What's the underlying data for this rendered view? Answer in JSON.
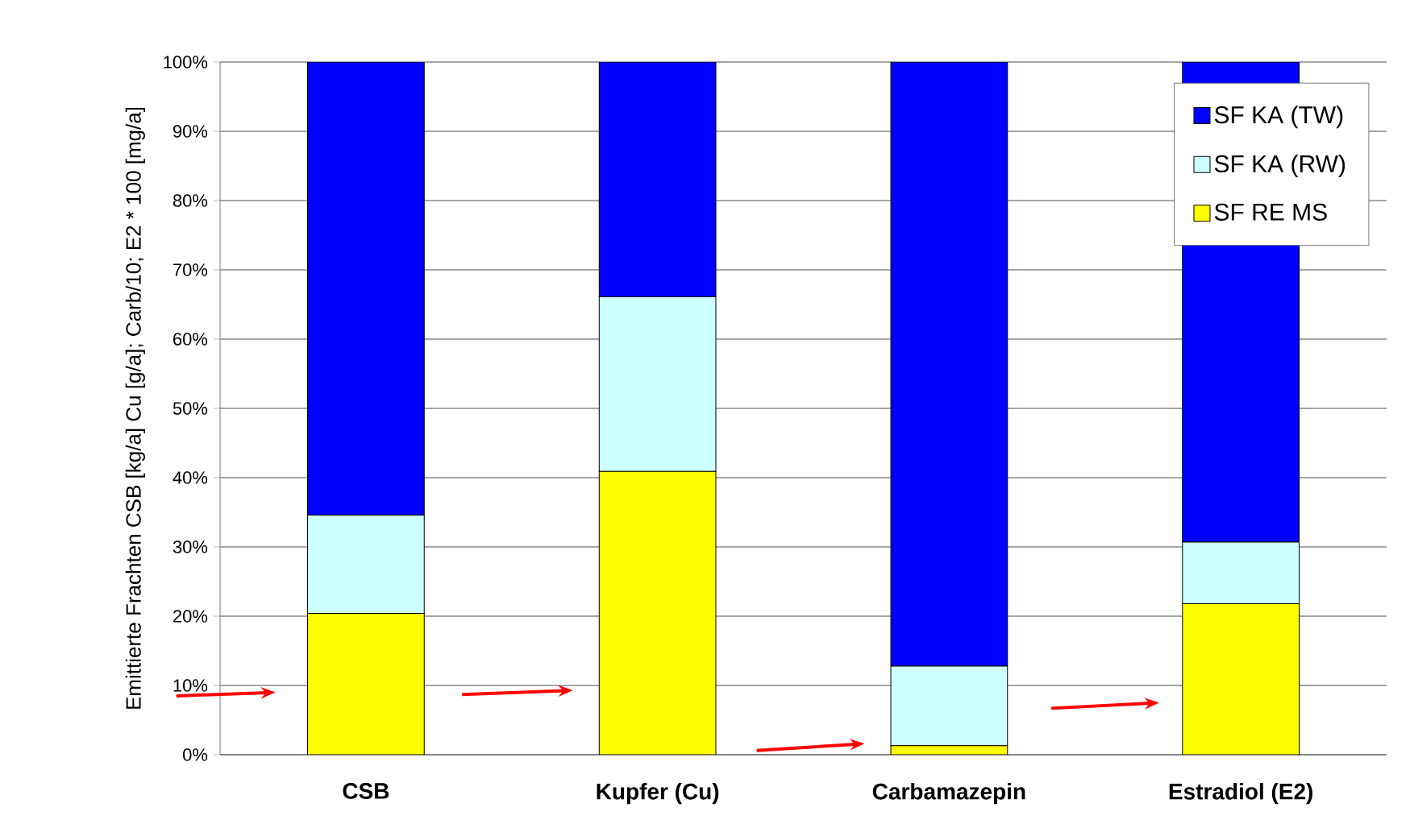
{
  "chart_data": {
    "type": "bar",
    "stacked": true,
    "ylabel": "Emittierte Frachten CSB [kg/a] Cu [g/a]; Carb/10; E2 * 100 [mg/a]",
    "categories": [
      "CSB",
      "Kupfer (Cu)",
      "Carbamazepin",
      "Estradiol (E2)"
    ],
    "series": [
      {
        "name": "SF RE MS",
        "color": "#ffff00",
        "values": [
          20.4,
          40.9,
          1.3,
          21.8
        ]
      },
      {
        "name": "SF KA (RW)",
        "color": "#ccffff",
        "values": [
          14.2,
          25.2,
          11.5,
          8.9
        ]
      },
      {
        "name": "SF KA (TW)",
        "color": "#0000ff",
        "values": [
          65.4,
          33.9,
          87.2,
          69.3
        ]
      }
    ],
    "ylim": [
      0,
      100
    ],
    "yticks": [
      {
        "value": 0,
        "label": "0%"
      },
      {
        "value": 10,
        "label": "10%"
      },
      {
        "value": 20,
        "label": "20%"
      },
      {
        "value": 30,
        "label": "30%"
      },
      {
        "value": 40,
        "label": "40%"
      },
      {
        "value": 50,
        "label": "50%"
      },
      {
        "value": 60,
        "label": "60%"
      },
      {
        "value": 70,
        "label": "70%"
      },
      {
        "value": 80,
        "label": "80%"
      },
      {
        "value": 90,
        "label": "90%"
      },
      {
        "value": 100,
        "label": "100%"
      }
    ],
    "grid": "y",
    "legend": "top right"
  }
}
